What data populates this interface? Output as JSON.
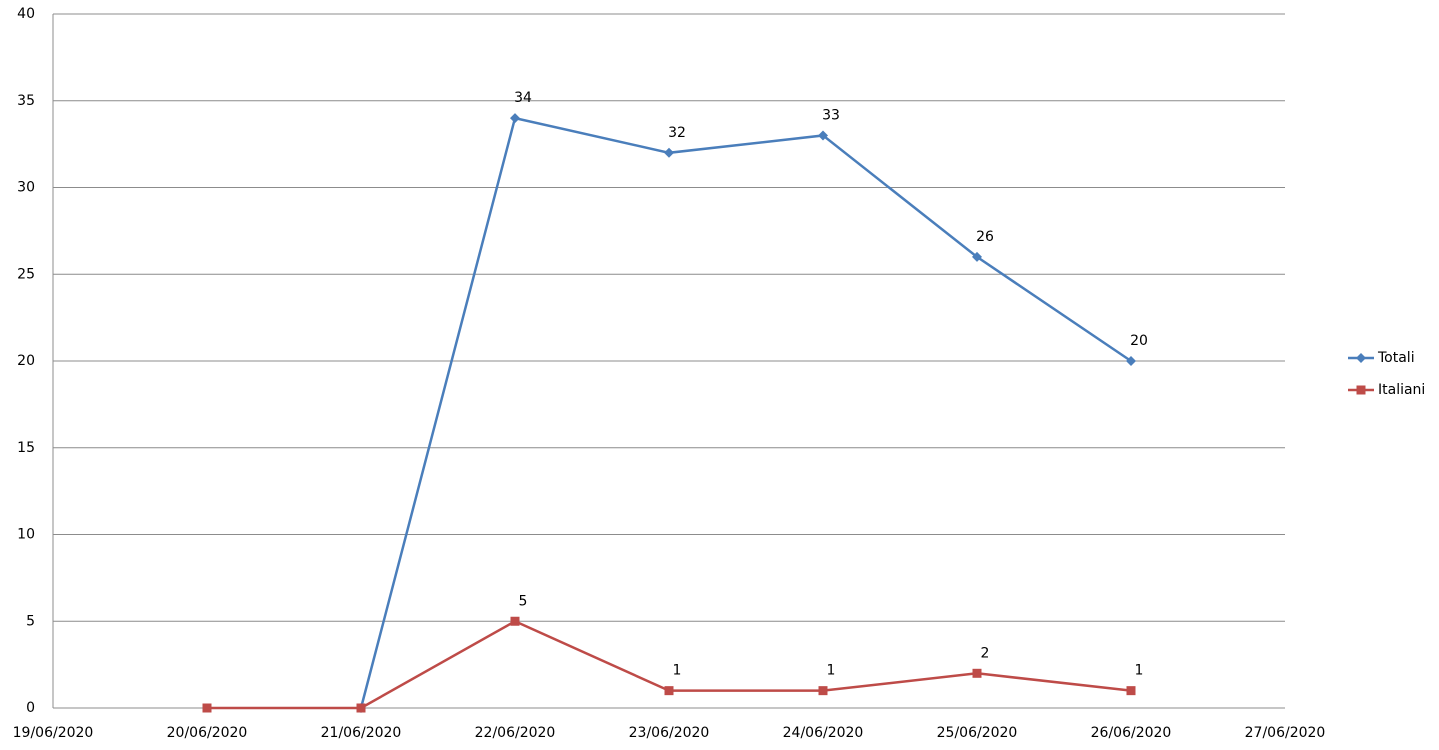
{
  "chart_data": {
    "type": "line",
    "categories": [
      "19/06/2020",
      "20/06/2020",
      "21/06/2020",
      "22/06/2020",
      "23/06/2020",
      "24/06/2020",
      "25/06/2020",
      "26/06/2020",
      "27/06/2020"
    ],
    "series": [
      {
        "name": "Totali",
        "color": "#4a7ebb",
        "marker": "diamond",
        "values": [
          null,
          null,
          0,
          34,
          32,
          33,
          26,
          20,
          null
        ]
      },
      {
        "name": "Italiani",
        "color": "#be4b48",
        "marker": "square",
        "values": [
          null,
          0,
          0,
          5,
          1,
          1,
          2,
          1,
          null
        ]
      }
    ],
    "ylim": [
      0,
      40
    ],
    "yticks": [
      0,
      5,
      10,
      15,
      20,
      25,
      30,
      35,
      40
    ],
    "grid": true,
    "legend": "right"
  }
}
